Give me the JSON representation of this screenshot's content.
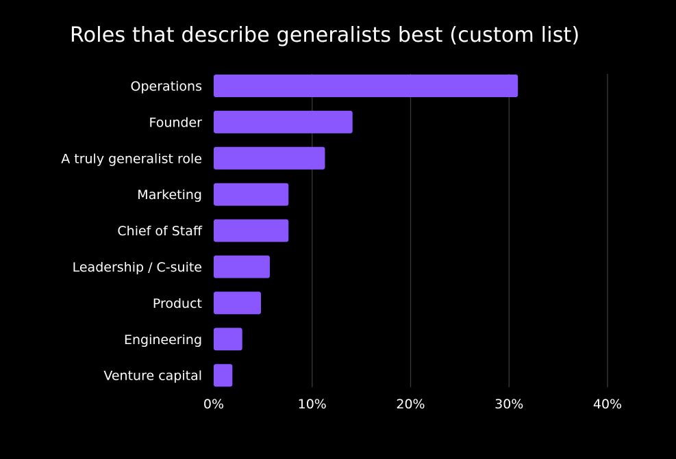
{
  "chart_data": {
    "type": "bar",
    "orientation": "horizontal",
    "title": "Roles that describe generalists best (custom list)",
    "categories": [
      "Operations",
      "Founder",
      "A truly generalist role",
      "Marketing",
      "Chief of Staff",
      "Leadership / C-suite",
      "Product",
      "Engineering",
      "Venture capital"
    ],
    "values": [
      30.9,
      14.1,
      11.3,
      7.6,
      7.6,
      5.7,
      4.8,
      2.9,
      1.9
    ],
    "value_unit": "%",
    "xlim": [
      0,
      40
    ],
    "xticks": [
      0,
      10,
      20,
      30,
      40
    ],
    "xtick_labels": [
      "0%",
      "10%",
      "20%",
      "30%",
      "40%"
    ],
    "xlabel": "",
    "ylabel": "",
    "grid": true,
    "legend": "none",
    "bar_color": "#8a57ff",
    "grid_color": "#3a3a3a",
    "background_color": "#000000",
    "text_color": "#ffffff"
  }
}
